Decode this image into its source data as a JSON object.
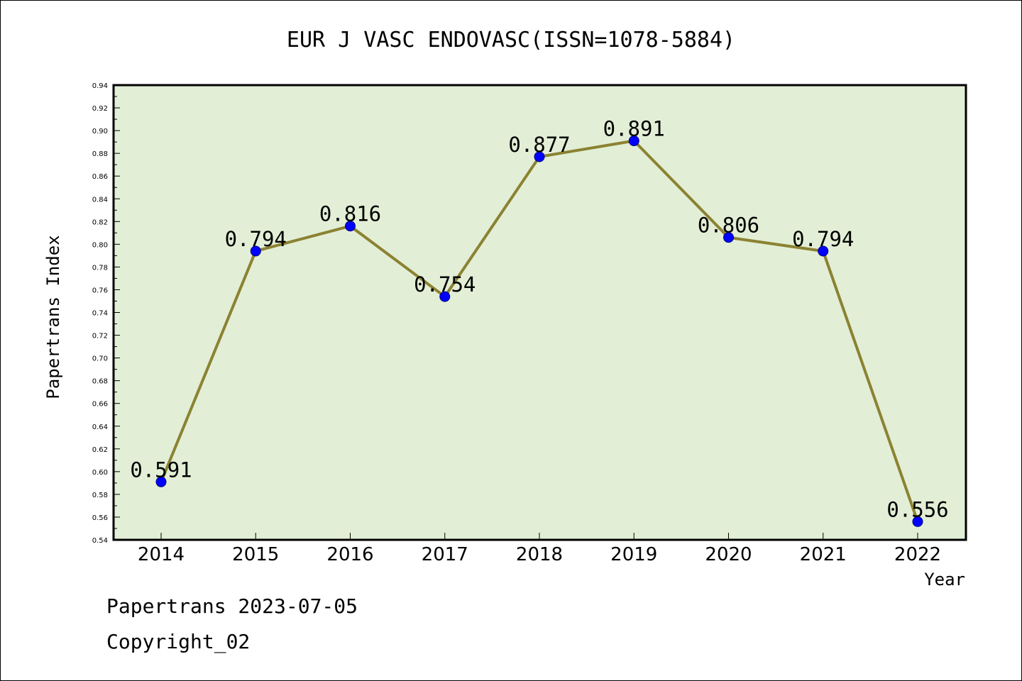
{
  "chart_data": {
    "type": "line",
    "title": "EUR J VASC ENDOVASC(ISSN=1078-5884)",
    "xlabel": "Year",
    "ylabel": "Papertrans Index",
    "categories": [
      "2014",
      "2015",
      "2016",
      "2017",
      "2018",
      "2019",
      "2020",
      "2021",
      "2022"
    ],
    "series": [
      {
        "values": [
          0.591,
          0.794,
          0.816,
          0.754,
          0.877,
          0.891,
          0.806,
          0.794,
          0.556
        ],
        "labels": [
          "0.591",
          "0.794",
          "0.816",
          "0.754",
          "0.877",
          "0.891",
          "0.806",
          "0.794",
          "0.556"
        ]
      }
    ],
    "ylim": [
      0.54,
      0.94
    ],
    "yticks": [
      "0.54",
      "0.56",
      "0.58",
      "0.60",
      "0.62",
      "0.64",
      "0.66",
      "0.68",
      "0.70",
      "0.72",
      "0.74",
      "0.76",
      "0.78",
      "0.80",
      "0.82",
      "0.84",
      "0.86",
      "0.88",
      "0.90",
      "0.92",
      "0.94"
    ],
    "grid": false,
    "colors": {
      "plot_background": "#e2efd6",
      "line": "#8b8232",
      "marker": "#0000ff"
    }
  },
  "footer": {
    "line1": "Papertrans 2023-07-05",
    "line2": "Copyright_02"
  }
}
